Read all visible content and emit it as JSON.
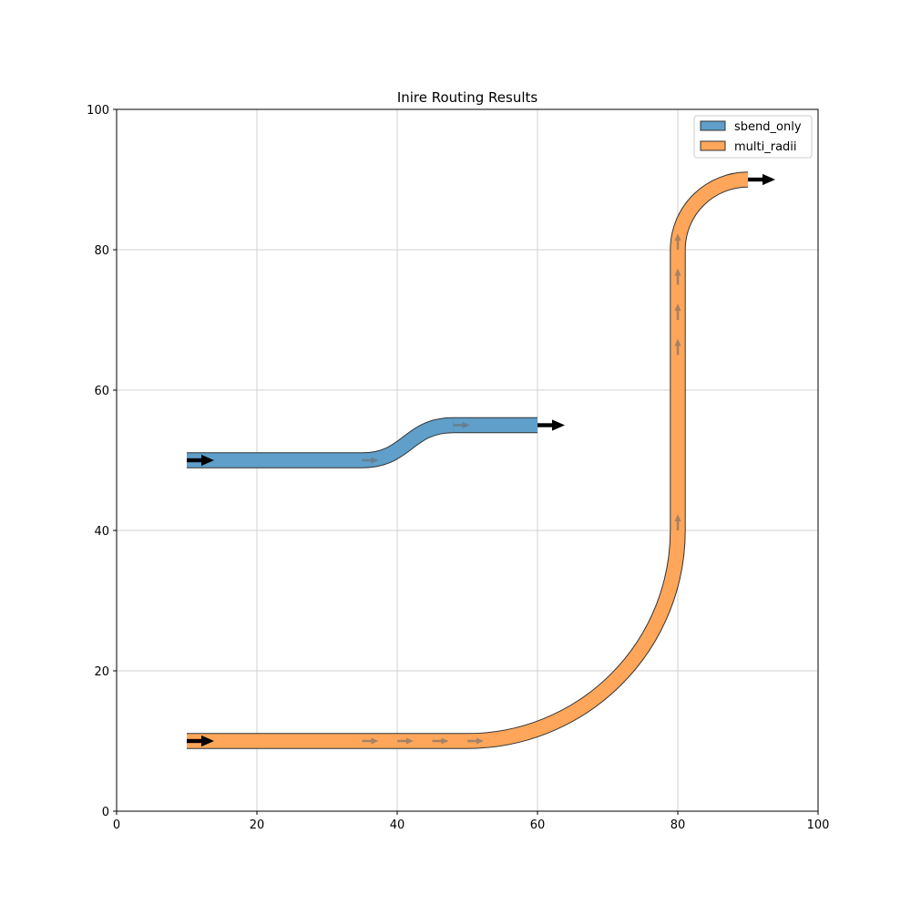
{
  "chart_data": {
    "type": "diagram",
    "title": "Inire Routing Results",
    "xlabel": "",
    "ylabel": "",
    "xlim": [
      0,
      100
    ],
    "ylim": [
      0,
      100
    ],
    "xticks": [
      0,
      20,
      40,
      60,
      80,
      100
    ],
    "yticks": [
      0,
      20,
      40,
      60,
      80,
      100
    ],
    "grid": true,
    "legend_position": "top-right",
    "waveguide_width": 2,
    "routes": [
      {
        "name": "sbend_only",
        "color": "#5f9fca",
        "segments": [
          {
            "kind": "straight",
            "start": [
              10,
              50
            ],
            "end": [
              35,
              50
            ]
          },
          {
            "kind": "sbend",
            "start": [
              35,
              50
            ],
            "end": [
              48,
              55
            ]
          },
          {
            "kind": "straight",
            "start": [
              48,
              55
            ],
            "end": [
              60,
              55
            ]
          }
        ],
        "direction_markers": [
          [
            35,
            50,
            0
          ],
          [
            48,
            55,
            0
          ]
        ],
        "port_arrows": [
          [
            10,
            50,
            0
          ],
          [
            60,
            55,
            0
          ]
        ]
      },
      {
        "name": "multi_radii",
        "color": "#ffa65a",
        "segments": [
          {
            "kind": "straight",
            "start": [
              10,
              10
            ],
            "end": [
              35,
              10
            ]
          },
          {
            "kind": "straight",
            "start": [
              35,
              10
            ],
            "end": [
              40,
              10
            ]
          },
          {
            "kind": "straight",
            "start": [
              40,
              10
            ],
            "end": [
              45,
              10
            ]
          },
          {
            "kind": "straight",
            "start": [
              45,
              10
            ],
            "end": [
              50,
              10
            ]
          },
          {
            "kind": "arc",
            "center": [
              50,
              40
            ],
            "radius": 30,
            "start_angle": -90,
            "end_angle": 0
          },
          {
            "kind": "straight",
            "start": [
              80,
              40
            ],
            "end": [
              80,
              65
            ]
          },
          {
            "kind": "straight",
            "start": [
              80,
              65
            ],
            "end": [
              80,
              70
            ]
          },
          {
            "kind": "straight",
            "start": [
              80,
              70
            ],
            "end": [
              80,
              75
            ]
          },
          {
            "kind": "straight",
            "start": [
              80,
              75
            ],
            "end": [
              80,
              80
            ]
          },
          {
            "kind": "arc",
            "center": [
              90,
              80
            ],
            "radius": 10,
            "start_angle": 180,
            "end_angle": 90
          }
        ],
        "direction_markers": [
          [
            35,
            10,
            0
          ],
          [
            40,
            10,
            0
          ],
          [
            45,
            10,
            0
          ],
          [
            50,
            10,
            0
          ],
          [
            80,
            40,
            90
          ],
          [
            80,
            65,
            90
          ],
          [
            80,
            70,
            90
          ],
          [
            80,
            75,
            90
          ],
          [
            80,
            80,
            90
          ]
        ],
        "port_arrows": [
          [
            10,
            10,
            0
          ],
          [
            90,
            90,
            0
          ]
        ]
      }
    ]
  }
}
